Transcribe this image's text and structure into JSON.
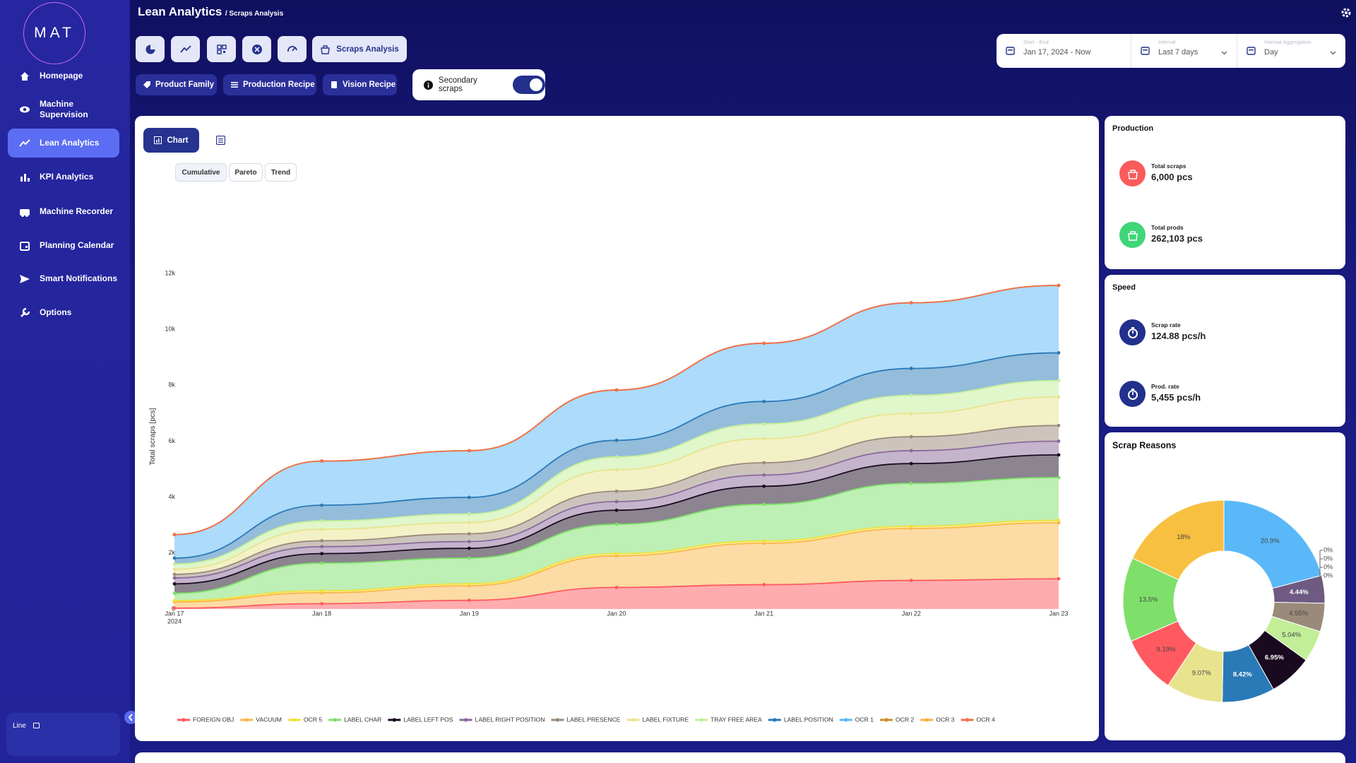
{
  "sidebar": {
    "logo": "MAT",
    "menu": [
      "Homepage",
      "Machine Supervision",
      "Lean Analytics",
      "KPI Analytics",
      "Machine Recorder",
      "Planning Calendar",
      "Smart Notifications",
      "Options"
    ],
    "footer_label": "Line"
  },
  "header": {
    "title": "Lean Analytics",
    "breadcrumb": "/ Scraps Analysis"
  },
  "toolbar": {
    "active_tab": "Scraps Analysis",
    "filters": [
      "Product Family",
      "Production Recipe",
      "Vision Recipe"
    ],
    "toggle_label": "Secondary scraps"
  },
  "date_controls": [
    {
      "label": "Start - End",
      "value": "Jan 17, 2024 - Now"
    },
    {
      "label": "Interval",
      "value": "Last 7 days"
    },
    {
      "label": "Interval Aggregation",
      "value": "Day"
    }
  ],
  "chart_panel": {
    "view_tab": "Chart",
    "modes": [
      "Cumulative",
      "Pareto",
      "Trend"
    ]
  },
  "production": {
    "title": "Production",
    "items": [
      {
        "label": "Total scraps",
        "value": "6,000 pcs"
      },
      {
        "label": "Total prods",
        "value": "262,103 pcs"
      }
    ]
  },
  "speed": {
    "title": "Speed",
    "items": [
      {
        "label": "Scrap rate",
        "value": "124.88 pcs/h"
      },
      {
        "label": "Prod. rate",
        "value": "5,455 pcs/h"
      }
    ]
  },
  "chart_data": [
    {
      "type": "area",
      "stacked": true,
      "markers": true,
      "ylabel": "Total scraps [pcs]",
      "categories": [
        "Jan 17",
        "Jan 18",
        "Jan 19",
        "Jan 20",
        "Jan 21",
        "Jan 22",
        "Jan 23"
      ],
      "year_label": "2024",
      "ylim": [
        0,
        12000
      ],
      "yticks": [
        0,
        {
          "value": 2000,
          "label": "2k"
        },
        {
          "value": 4000,
          "label": "4k"
        },
        {
          "value": 6000,
          "label": "6k"
        },
        {
          "value": 8000,
          "label": "8k"
        },
        {
          "value": 10000,
          "label": "10k"
        },
        {
          "value": 12000,
          "label": "12k"
        }
      ],
      "series": [
        {
          "name": "FOREIGN OBJ",
          "color": "#ff5a5f",
          "values": [
            30,
            190,
            310,
            770,
            870,
            1020,
            1080
          ]
        },
        {
          "name": "VACUUM",
          "color": "#f9b84a",
          "values": [
            220,
            390,
            520,
            1130,
            1480,
            1860,
            2000
          ]
        },
        {
          "name": "OCR 5",
          "color": "#f2e13c",
          "values": [
            50,
            70,
            70,
            80,
            80,
            80,
            90
          ]
        },
        {
          "name": "LABEL CHAR",
          "color": "#7ee06a",
          "values": [
            260,
            990,
            920,
            1050,
            1310,
            1530,
            1530
          ]
        },
        {
          "name": "LABEL LEFT POS",
          "color": "#1a0a20",
          "values": [
            340,
            340,
            350,
            500,
            650,
            710,
            810
          ]
        },
        {
          "name": "LABEL RIGHT POSITION",
          "color": "#8a6a9a",
          "values": [
            210,
            250,
            240,
            310,
            400,
            460,
            490
          ]
        },
        {
          "name": "LABEL PRESENCE",
          "color": "#9a8a7a",
          "values": [
            130,
            210,
            280,
            370,
            440,
            500,
            560
          ]
        },
        {
          "name": "LABEL FIXTURE",
          "color": "#e8e48e",
          "values": [
            180,
            410,
            400,
            770,
            860,
            830,
            1020
          ]
        },
        {
          "name": "TRAY FREE AREA",
          "color": "#c2ee98",
          "values": [
            190,
            300,
            310,
            460,
            530,
            650,
            590
          ]
        },
        {
          "name": "LABEL POSITION",
          "color": "#2a7ab8",
          "values": [
            210,
            560,
            590,
            590,
            800,
            960,
            990
          ]
        },
        {
          "name": "OCR 1",
          "color": "#5ab8f8",
          "values": [
            840,
            1580,
            1670,
            1800,
            2080,
            2350,
            2410
          ]
        },
        {
          "name": "OCR 2",
          "color": "#c8902a",
          "values": [
            0,
            0,
            0,
            0,
            0,
            0,
            0
          ]
        },
        {
          "name": "OCR 3",
          "color": "#f8b040",
          "values": [
            0,
            0,
            0,
            0,
            0,
            0,
            0
          ]
        },
        {
          "name": "OCR 4",
          "color": "#f07050",
          "values": [
            0,
            0,
            0,
            0,
            0,
            0,
            0
          ]
        }
      ]
    },
    {
      "type": "donut",
      "title": "Scrap Reasons",
      "values": [
        20.9,
        0,
        0,
        0,
        0,
        4.44,
        4.55,
        5.04,
        6.95,
        8.42,
        9.07,
        9.19,
        13.5,
        18
      ],
      "value_labels": [
        "20.9%",
        "0%",
        "0%",
        "0%",
        "0%",
        "4.44%",
        "4.55%",
        "5.04%",
        "6.95%",
        "8.42%",
        "9.07%",
        "9.19%",
        "13.5%",
        "18%"
      ],
      "colors": [
        "#5ab8f8",
        "#c8902a",
        "#f8b040",
        "#f07050",
        "#f2e13c",
        "#6e5a82",
        "#9a8a7a",
        "#c2ee98",
        "#1a0a20",
        "#2a7ab8",
        "#e8e48e",
        "#ff5a5f",
        "#7ee06a",
        "#f8c040"
      ]
    }
  ]
}
